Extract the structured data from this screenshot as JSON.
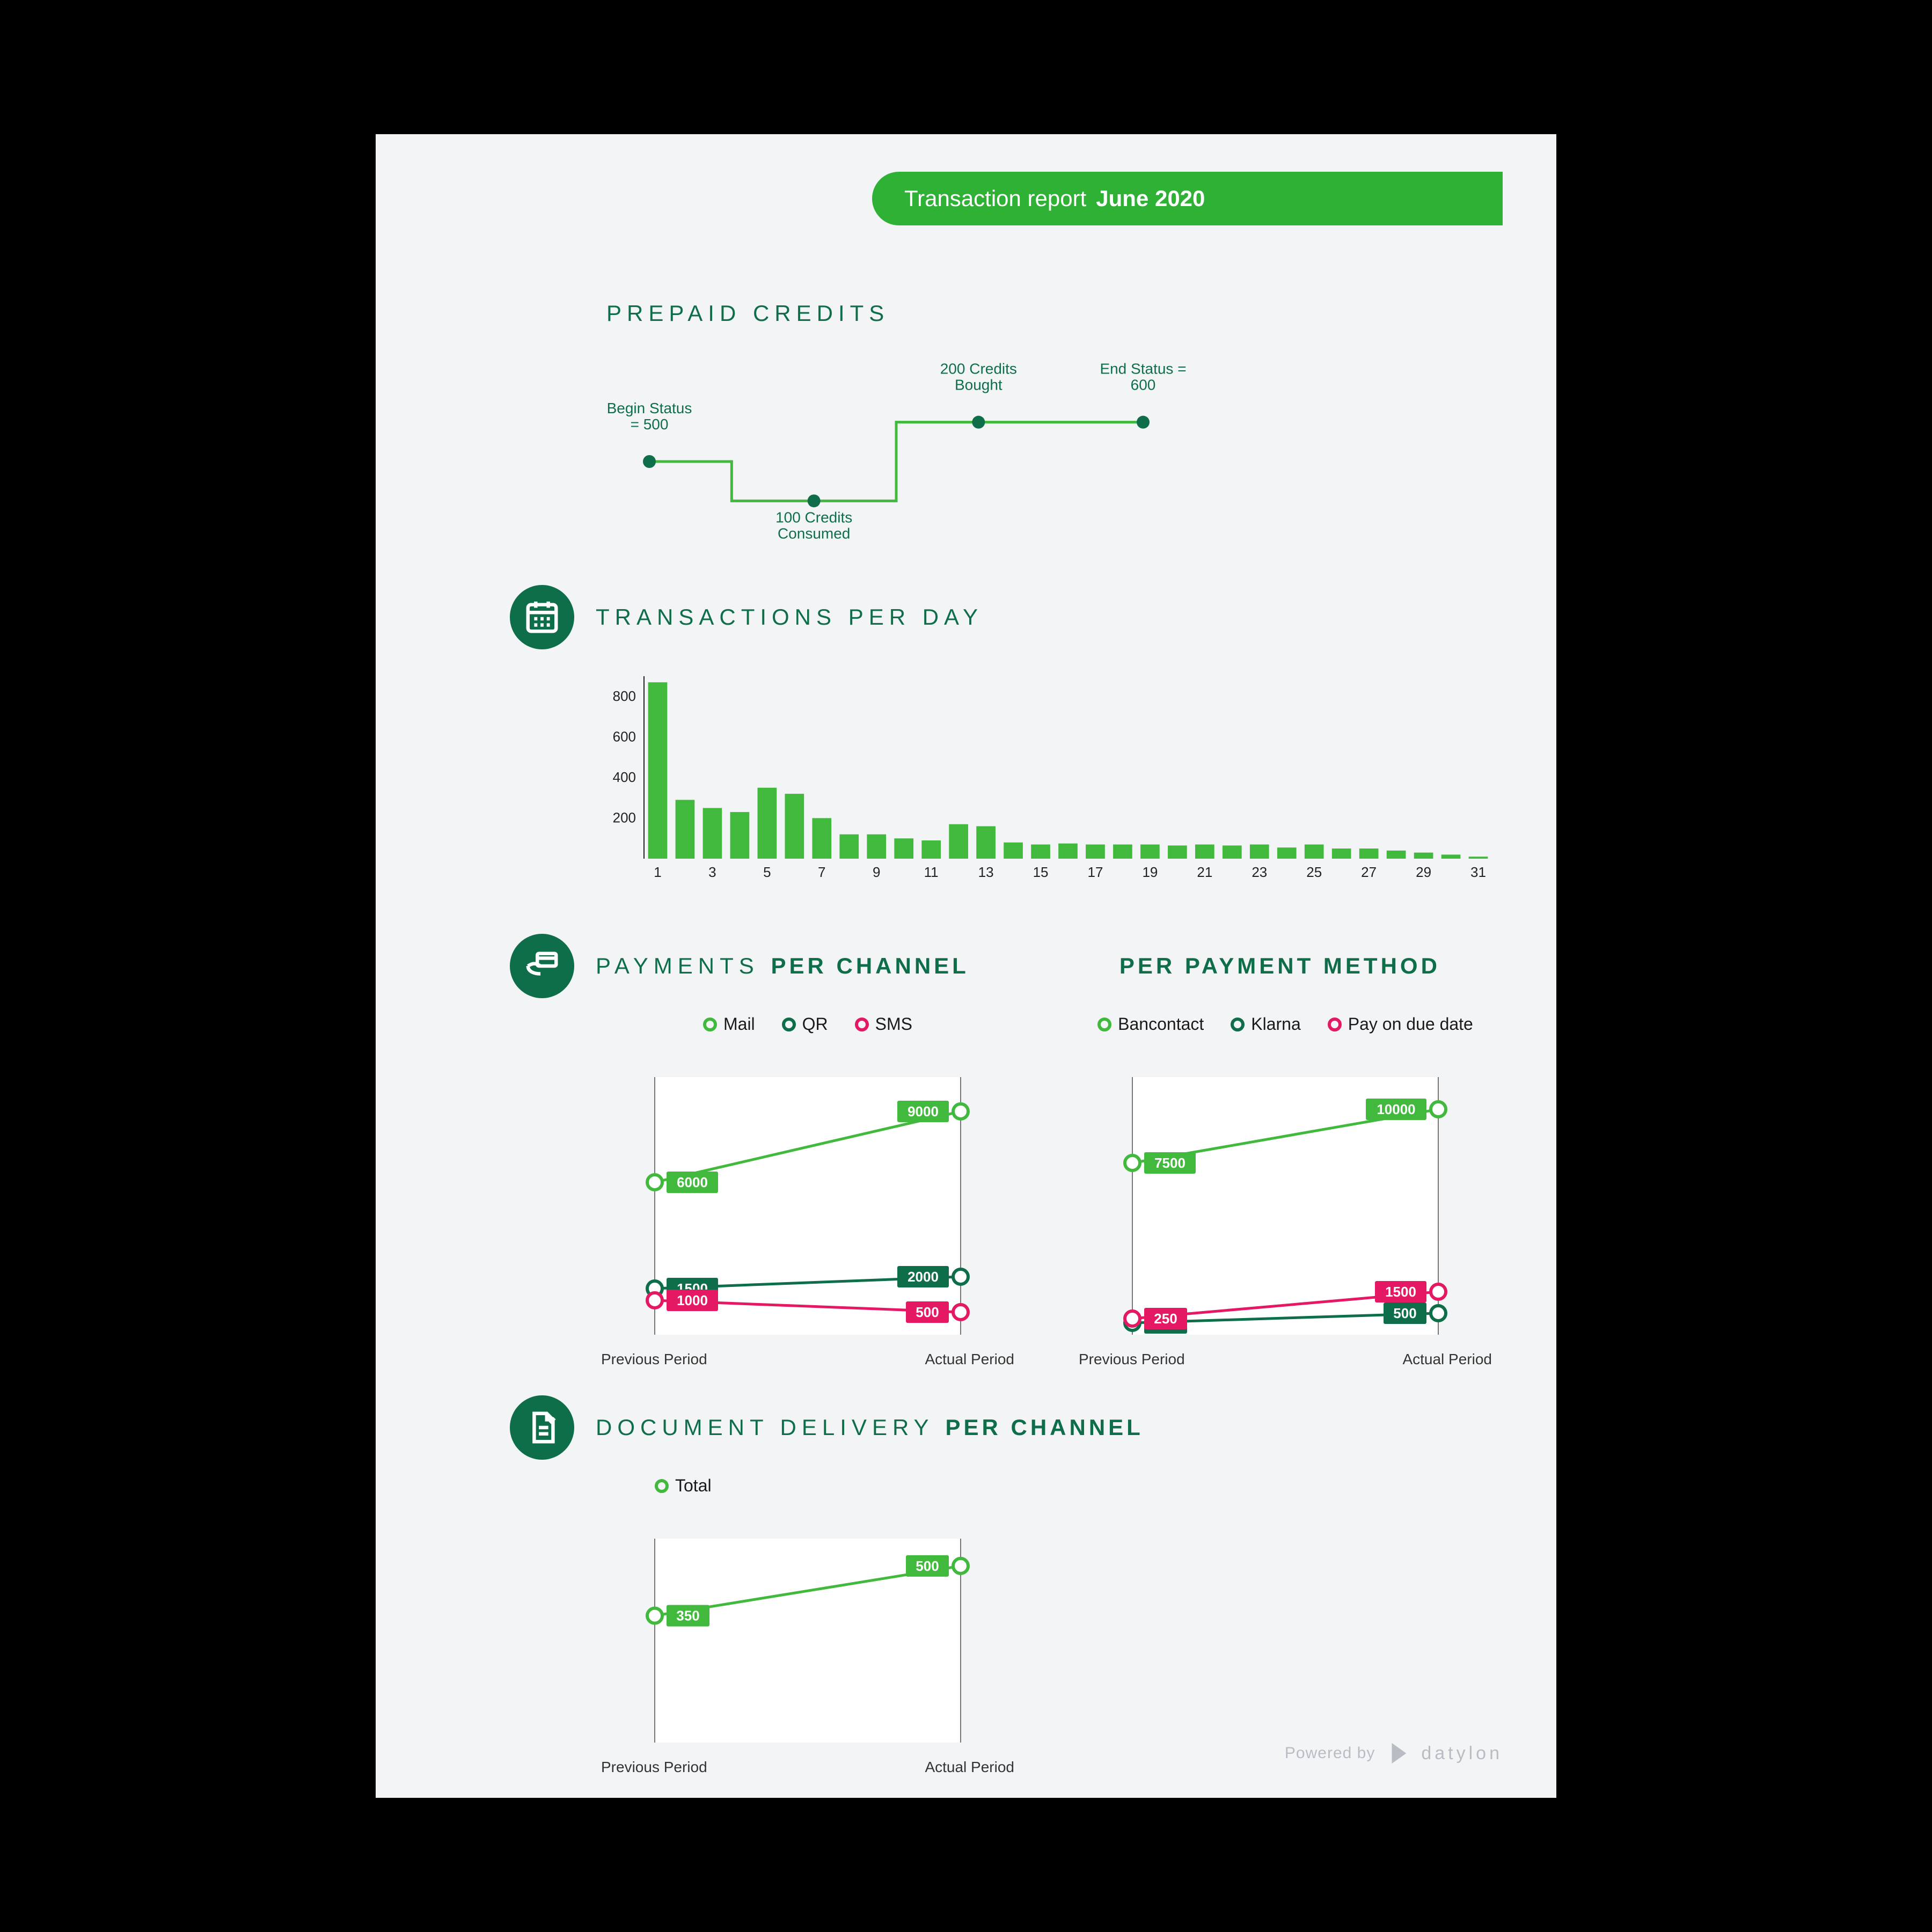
{
  "header": {
    "label": "Transaction report",
    "date": "June 2020",
    "bar_color": "#2fb135",
    "text_color": "#ffffff"
  },
  "palette": {
    "dark_green": "#0f6e4a",
    "bright_green": "#40b93c",
    "magenta": "#e51863",
    "page_bg": "#f3f4f6",
    "outer_bg": "#000000",
    "grey": "#b8bdc4"
  },
  "prepaid": {
    "title": "PREPAID  CREDITS",
    "points": [
      {
        "label_top": "Begin Status\n= 500",
        "y": 500
      },
      {
        "label_bottom": "100 Credits\nConsumed",
        "y": 400
      },
      {
        "label_top": "200 Credits\nBought",
        "y": 600
      },
      {
        "label_top": "End Status =\n600",
        "y": 600
      }
    ],
    "line_color": "#40b93c",
    "dot_color": "#0f6e4a",
    "text_color": "#0f6e4a",
    "fontsize": 28
  },
  "tpd": {
    "title": "TRANSACTIONS   PER DAY",
    "yticks": [
      200,
      400,
      600,
      800
    ],
    "ymax": 900,
    "xticks_every": 2,
    "days": [
      1,
      2,
      3,
      4,
      5,
      6,
      7,
      8,
      9,
      10,
      11,
      12,
      13,
      14,
      15,
      16,
      17,
      18,
      19,
      20,
      21,
      22,
      23,
      24,
      25,
      26,
      27,
      28,
      29,
      30,
      31
    ],
    "values": [
      870,
      290,
      250,
      230,
      350,
      320,
      200,
      120,
      120,
      100,
      90,
      170,
      160,
      80,
      70,
      75,
      70,
      70,
      70,
      65,
      70,
      65,
      70,
      55,
      70,
      50,
      50,
      40,
      30,
      20,
      10
    ],
    "bar_color": "#40b93c",
    "axis_color": "#222222",
    "tick_fontsize": 26
  },
  "payments": {
    "title_left": "PAYMENTS",
    "title_left_bold": "PER CHANNEL",
    "title_right": "PER PAYMENT METHOD",
    "period_prev": "Previous Period",
    "period_cur": "Actual Period",
    "channel": {
      "ymax": 10000,
      "series": [
        {
          "name": "Mail",
          "color": "#40b93c",
          "prev": 6000,
          "cur": 9000
        },
        {
          "name": "QR",
          "color": "#0f6e4a",
          "prev": 1500,
          "cur": 2000
        },
        {
          "name": "SMS",
          "color": "#e51863",
          "prev": 1000,
          "cur": 500
        }
      ]
    },
    "method": {
      "ymax": 11000,
      "series": [
        {
          "name": "Bancontact",
          "color": "#40b93c",
          "prev": 7500,
          "cur": 10000
        },
        {
          "name": "Klarna",
          "color": "#0f6e4a",
          "prev": 50,
          "cur": 500
        },
        {
          "name": "Pay on due date",
          "color": "#e51863",
          "prev": 250,
          "cur": 1500
        }
      ]
    }
  },
  "delivery": {
    "title_a": "DOCUMENT DELIVERY",
    "title_b": "PER CHANNEL",
    "ymax": 550,
    "series": [
      {
        "name": "Total",
        "color": "#40b93c",
        "prev": 350,
        "cur": 500
      }
    ],
    "period_prev": "Previous Period",
    "period_cur": "Actual Period"
  },
  "footer": {
    "powered": "Powered by",
    "brand": "datylon"
  }
}
